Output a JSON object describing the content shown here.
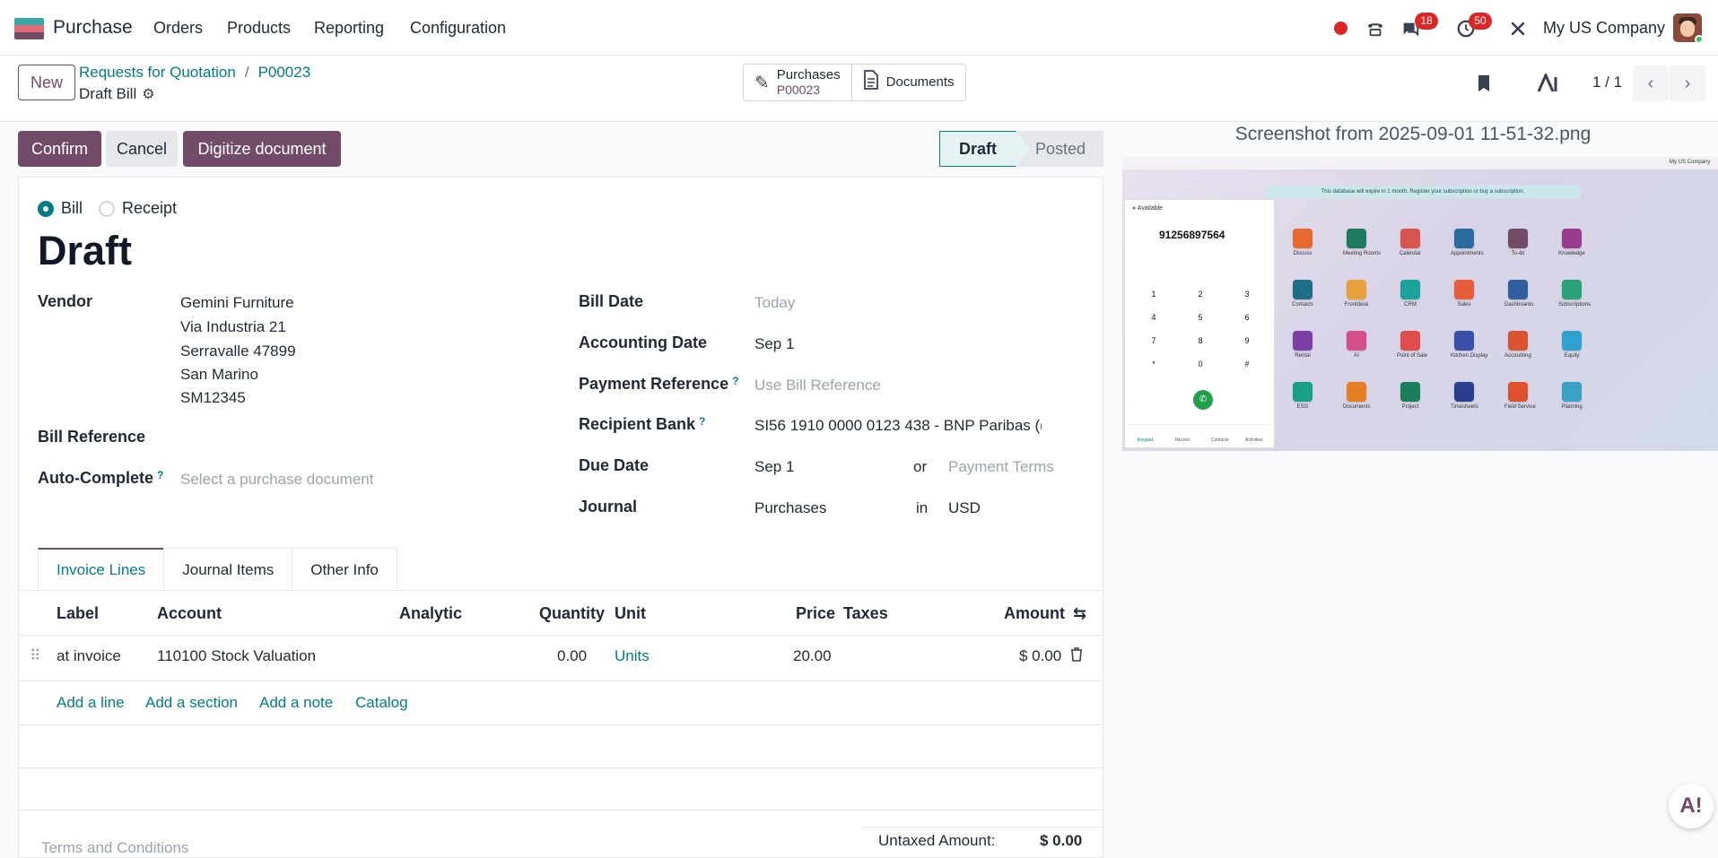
{
  "navbar": {
    "app_name": "Purchase",
    "menus": [
      "Orders",
      "Products",
      "Reporting",
      "Configuration"
    ],
    "badges": {
      "messages": "18",
      "activities": "50"
    },
    "company": "My US Company",
    "icons": [
      "record-dot-icon",
      "phone-icon",
      "chat-icon",
      "clock-icon",
      "tools-icon"
    ]
  },
  "control": {
    "new_label": "New",
    "breadcrumb": {
      "parent": "Requests for Quotation",
      "record": "P00023"
    },
    "record_name": "Draft Bill",
    "smart_buttons": {
      "purchases": {
        "label": "Purchases",
        "sub": "P00023"
      },
      "documents": {
        "label": "Documents"
      }
    },
    "pager": "1 / 1"
  },
  "actions": {
    "confirm": "Confirm",
    "cancel": "Cancel",
    "digitize": "Digitize document",
    "stages": {
      "draft": "Draft",
      "posted": "Posted"
    }
  },
  "form": {
    "move_type": {
      "bill": "Bill",
      "receipt": "Receipt",
      "selected": "Bill"
    },
    "title": "Draft",
    "vendor": {
      "label": "Vendor",
      "name": "Gemini Furniture",
      "street": "Via Industria 21",
      "city": "Serravalle 47899",
      "country": "San Marino",
      "vat": "SM12345"
    },
    "bill_reference": {
      "label": "Bill Reference"
    },
    "auto_complete": {
      "label": "Auto-Complete",
      "help": "?",
      "placeholder": "Select a purchase document"
    },
    "bill_date": {
      "label": "Bill Date",
      "placeholder": "Today"
    },
    "accounting_date": {
      "label": "Accounting Date",
      "value": "Sep 1"
    },
    "payment_reference": {
      "label": "Payment Reference",
      "help": "?",
      "placeholder": "Use Bill Reference"
    },
    "recipient_bank": {
      "label": "Recipient Bank",
      "help": "?",
      "value": "SI56 1910 0000 0123 438 - BNP Paribas (("
    },
    "due_date": {
      "label": "Due Date",
      "value": "Sep 1",
      "or": "or",
      "terms_placeholder": "Payment Terms"
    },
    "journal": {
      "label": "Journal",
      "value": "Purchases",
      "in": "in",
      "currency": "USD"
    }
  },
  "tabs": [
    "Invoice Lines",
    "Journal Items",
    "Other Info"
  ],
  "lines": {
    "headers": {
      "label": "Label",
      "account": "Account",
      "analytic": "Analytic",
      "quantity": "Quantity",
      "unit": "Unit",
      "price": "Price",
      "taxes": "Taxes",
      "amount": "Amount"
    },
    "rows": [
      {
        "label": "at invoice",
        "account": "110100 Stock Valuation",
        "quantity": "0.00",
        "unit": "Units",
        "price": "20.00",
        "amount": "$ 0.00"
      }
    ],
    "add": {
      "line": "Add a line",
      "section": "Add a section",
      "note": "Add a note",
      "catalog": "Catalog"
    }
  },
  "footer": {
    "terms_placeholder": "Terms and Conditions",
    "untaxed_label": "Untaxed Amount:",
    "untaxed_value": "$ 0.00"
  },
  "preview": {
    "title": "Screenshot from 2025-09-01 11-51-32.png",
    "company": "My US Company",
    "banner": "This database will expire in 1 month. Register your subscription or buy a subscription.",
    "status": "Available",
    "number": "91256897564",
    "keys": [
      "1",
      "2",
      "3",
      "4",
      "5",
      "6",
      "7",
      "8",
      "9",
      "*",
      "0",
      "#"
    ],
    "tabs": [
      "Keypad",
      "Recent",
      "Contacts",
      "Activities"
    ],
    "apps": [
      "Discuss",
      "Meeting Rooms",
      "Calendar",
      "Appointments",
      "To-do",
      "Knowledge",
      "Contacts",
      "Frontdesk",
      "CRM",
      "Sales",
      "Dashboards",
      "Subscriptions",
      "Rental",
      "AI",
      "Point of Sale",
      "Kitchen Display",
      "Accounting",
      "Equity",
      "ESG",
      "Documents",
      "Project",
      "Timesheets",
      "Field Service",
      "Planning"
    ]
  },
  "colors": {
    "brand": "#714b67",
    "link": "#017e84",
    "danger": "#dc2626"
  }
}
